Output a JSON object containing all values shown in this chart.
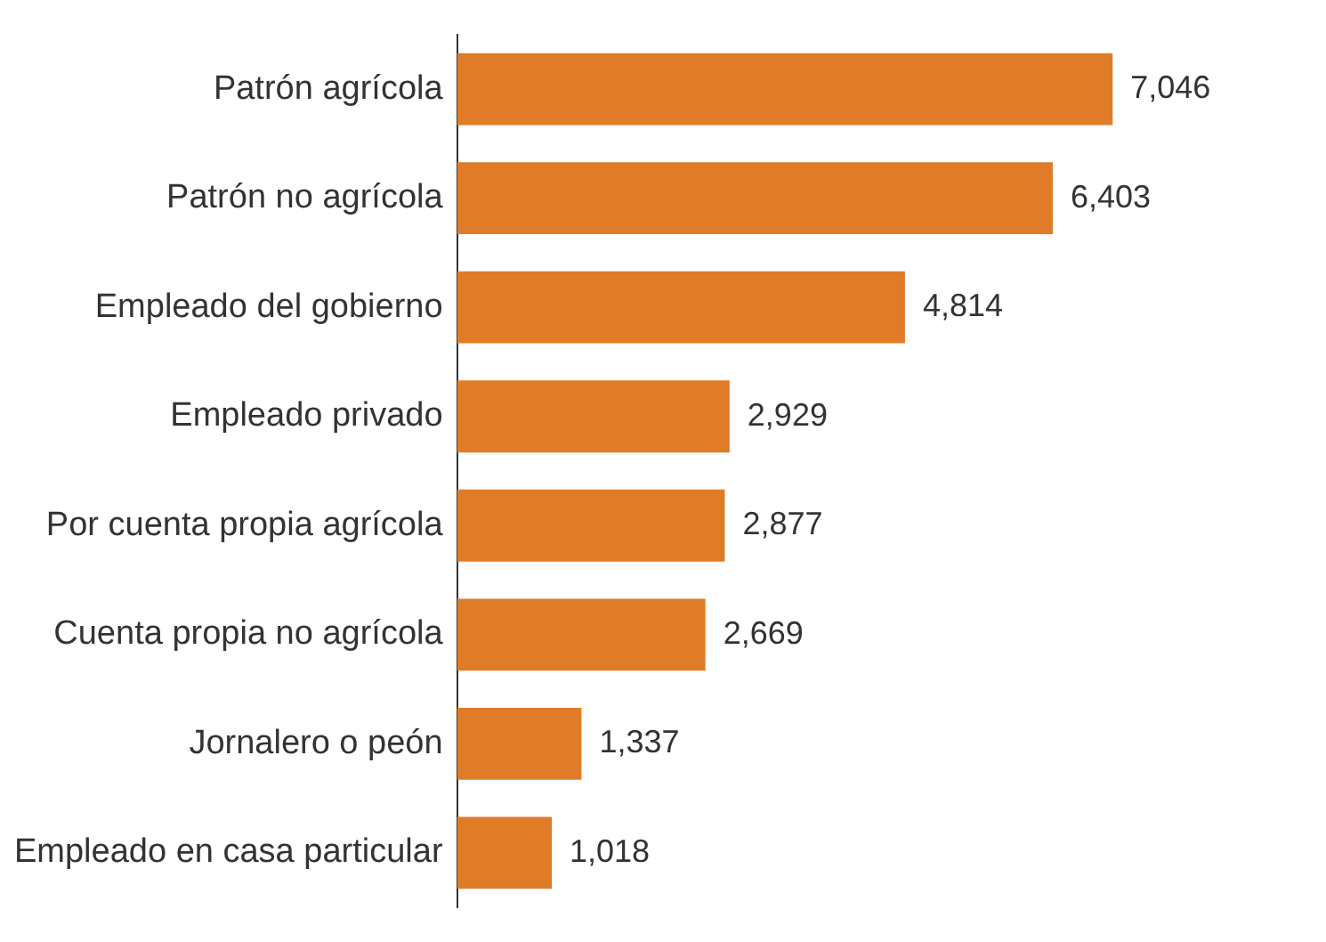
{
  "chart_data": {
    "type": "bar",
    "orientation": "horizontal",
    "categories": [
      "Patrón agrícola",
      "Patrón no agrícola",
      "Empleado del gobierno",
      "Empleado privado",
      "Por cuenta propia agrícola",
      "Cuenta propia no agrícola",
      "Jornalero o peón",
      "Empleado en casa particular"
    ],
    "values": [
      7046,
      6403,
      4814,
      2929,
      2877,
      2669,
      1337,
      1018
    ],
    "value_labels": [
      "7,046",
      "6,403",
      "4,814",
      "2,929",
      "2,877",
      "2,669",
      "1,337",
      "1,018"
    ],
    "color": "#e07b27"
  }
}
